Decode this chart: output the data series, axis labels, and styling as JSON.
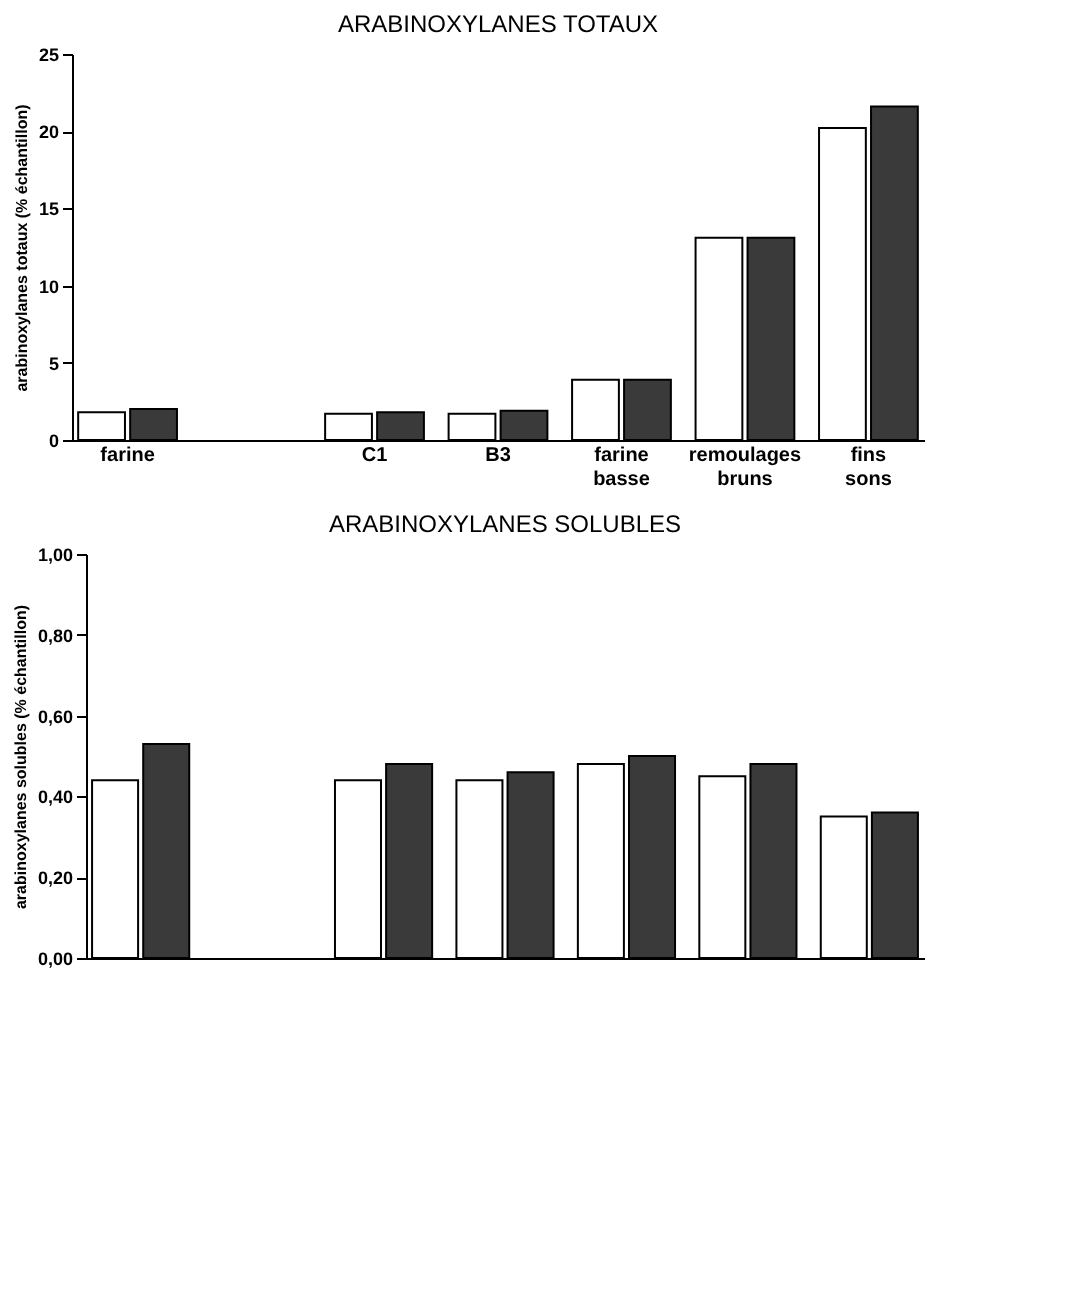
{
  "chart_data": [
    {
      "type": "bar",
      "title": "ARABINOXYLANES TOTAUX",
      "ylabel": "arabinoxylanes totaux (% échantillon)",
      "categories": [
        "farine",
        null,
        "C1",
        "B3",
        "farine basse",
        "remoulages bruns",
        "fins sons"
      ],
      "series": [
        {
          "color": "#ffffff",
          "values": [
            1.8,
            null,
            1.7,
            1.7,
            3.9,
            13.1,
            20.2
          ]
        },
        {
          "color": "#3a3a3a",
          "values": [
            2.0,
            null,
            1.8,
            1.9,
            3.9,
            13.1,
            21.6
          ]
        }
      ],
      "ylim": [
        0,
        25
      ],
      "yticks": [
        0,
        5,
        10,
        15,
        20,
        25
      ],
      "grid": false,
      "legend": false
    },
    {
      "type": "bar",
      "title": "ARABINOXYLANES SOLUBLES",
      "ylabel": "arabinoxylanes solubles (% échantillon)",
      "categories": [
        null,
        null,
        null,
        null,
        null,
        null,
        null
      ],
      "series": [
        {
          "color": "#ffffff",
          "values": [
            0.44,
            null,
            0.44,
            0.44,
            0.48,
            0.45,
            0.35
          ]
        },
        {
          "color": "#3a3a3a",
          "values": [
            0.53,
            null,
            0.48,
            0.46,
            0.5,
            0.48,
            0.36
          ]
        }
      ],
      "ylim": [
        0,
        1
      ],
      "yticks": [
        {
          "value": 0,
          "label": "0,00"
        },
        {
          "value": 0.2,
          "label": "0,20"
        },
        {
          "value": 0.4,
          "label": "0,40"
        },
        {
          "value": 0.6,
          "label": "0,60"
        },
        {
          "value": 0.8,
          "label": "0,80"
        },
        {
          "value": 1,
          "label": "1,00"
        }
      ],
      "grid": false,
      "legend": false,
      "tick_labels": "y"
    }
  ]
}
